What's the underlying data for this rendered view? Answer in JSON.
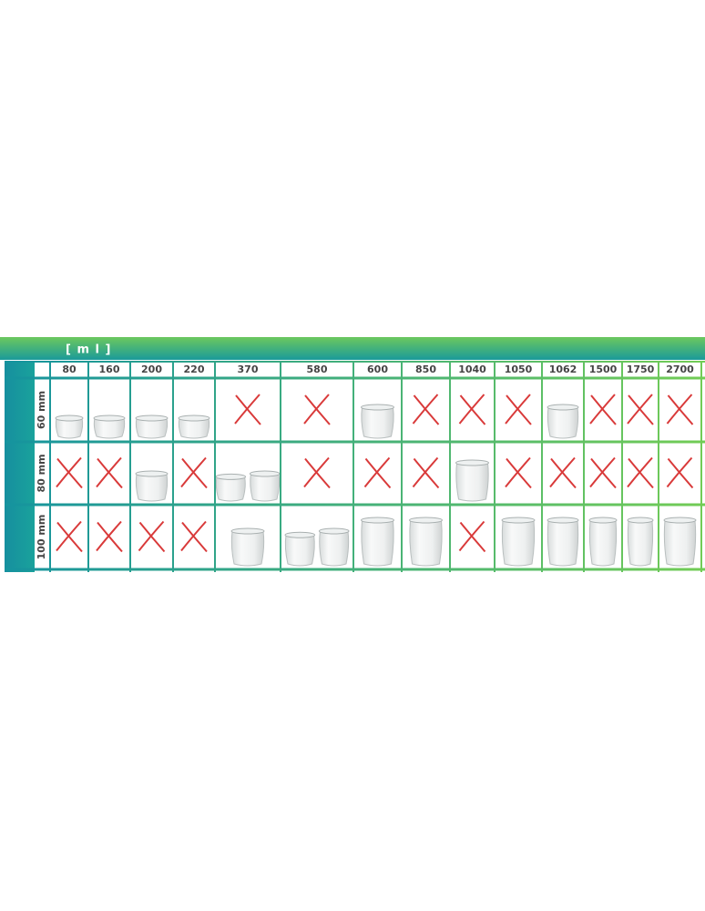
{
  "header": {
    "unit": "[ m l ]"
  },
  "columns": [
    "80",
    "160",
    "200",
    "220",
    "370",
    "580",
    "600",
    "850",
    "1040",
    "1050",
    "1062",
    "1500",
    "1750",
    "2700"
  ],
  "rows": [
    {
      "label": "60 mm"
    },
    {
      "label": "80 mm"
    },
    {
      "label": "100 mm"
    }
  ]
}
